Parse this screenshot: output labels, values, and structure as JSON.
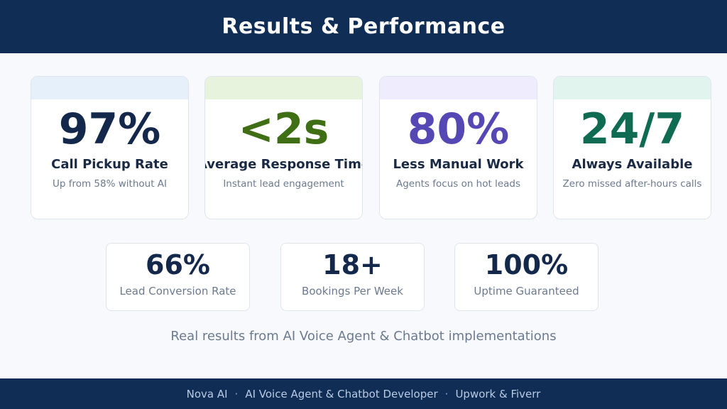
{
  "header": {
    "title": "Results & Performance"
  },
  "stats": [
    {
      "value": "97%",
      "label": "Call Pickup Rate",
      "sub": "Up from 58% without AI",
      "color": "#13284a",
      "band": "#e6f0fb"
    },
    {
      "value": "<2s",
      "label": "Average Response Time",
      "sub": "Instant lead engagement",
      "color": "#3f6e14",
      "band": "#e8f3de"
    },
    {
      "value": "80%",
      "label": "Less Manual Work",
      "sub": "Agents focus on hot leads",
      "color": "#5547b4",
      "band": "#eeecfd"
    },
    {
      "value": "24/7",
      "label": "Always Available",
      "sub": "Zero missed after-hours calls",
      "color": "#0f6b52",
      "band": "#e1f4ee"
    }
  ],
  "metrics": [
    {
      "value": "66%",
      "label": "Lead Conversion Rate"
    },
    {
      "value": "18+",
      "label": "Bookings Per Week"
    },
    {
      "value": "100%",
      "label": "Uptime Guaranteed"
    }
  ],
  "tagline": "Real results from AI Voice Agent & Chatbot implementations",
  "footer": {
    "parts": [
      "Nova AI",
      "AI Voice Agent & Chatbot Developer",
      "Upwork & Fiverr"
    ],
    "separator": "·"
  }
}
